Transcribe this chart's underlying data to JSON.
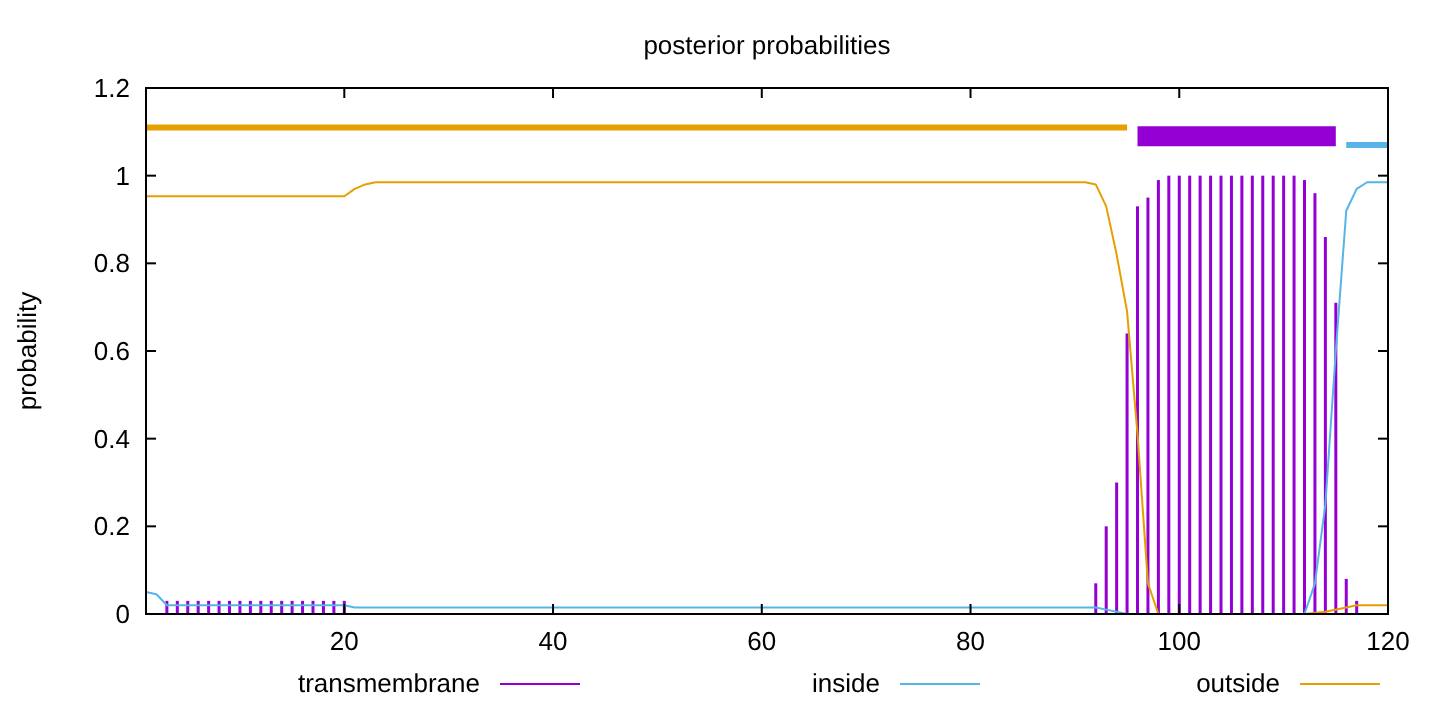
{
  "chart_data": {
    "type": "line",
    "title": "posterior probabilities",
    "ylabel": "probability",
    "xlim": [
      1,
      120
    ],
    "xticks": [
      20,
      40,
      60,
      80,
      100,
      120
    ],
    "ylim": [
      0,
      1.2
    ],
    "yticks": [
      0,
      0.2,
      0.4,
      0.6,
      0.8,
      1,
      1.2
    ],
    "grid": false,
    "legend": "bottom",
    "series": [
      {
        "name": "transmembrane",
        "type": "bar",
        "color": "#9400d3",
        "x": [
          3,
          4,
          5,
          6,
          7,
          8,
          9,
          10,
          11,
          12,
          13,
          14,
          15,
          16,
          17,
          18,
          19,
          20,
          92,
          93,
          94,
          95,
          96,
          97,
          98,
          99,
          100,
          101,
          102,
          103,
          104,
          105,
          106,
          107,
          108,
          109,
          110,
          111,
          112,
          113,
          114,
          115,
          116,
          117
        ],
        "values": [
          0.03,
          0.03,
          0.03,
          0.03,
          0.03,
          0.03,
          0.03,
          0.03,
          0.03,
          0.03,
          0.03,
          0.03,
          0.03,
          0.03,
          0.03,
          0.03,
          0.03,
          0.03,
          0.07,
          0.2,
          0.3,
          0.64,
          0.93,
          0.95,
          0.99,
          1,
          1,
          1,
          1,
          1,
          1,
          1,
          1,
          1,
          1,
          1,
          1,
          1,
          0.99,
          0.96,
          0.86,
          0.71,
          0.08,
          0.03
        ]
      },
      {
        "name": "inside",
        "color": "#56b4e9",
        "x": [
          1,
          2,
          3,
          20,
          21,
          92,
          93,
          94,
          95,
          112,
          113,
          114,
          115,
          116,
          117,
          118,
          120
        ],
        "values": [
          0.05,
          0.045,
          0.02,
          0.02,
          0.015,
          0.015,
          0.01,
          0.005,
          0,
          0,
          0.07,
          0.25,
          0.6,
          0.92,
          0.97,
          0.985,
          0.985
        ]
      },
      {
        "name": "outside",
        "color": "#e69f00",
        "x": [
          1,
          20,
          21,
          22,
          23,
          91,
          92,
          93,
          94,
          95,
          96,
          97,
          98,
          112,
          114,
          116,
          117,
          120
        ],
        "values": [
          0.953,
          0.953,
          0.97,
          0.98,
          0.985,
          0.985,
          0.98,
          0.93,
          0.82,
          0.69,
          0.41,
          0.07,
          0,
          0,
          0.005,
          0.015,
          0.02,
          0.02
        ]
      },
      {
        "color": "#e69f00",
        "x": [
          1,
          95
        ],
        "values": [
          1.11,
          1.11
        ]
      },
      {
        "color": "#9400d3",
        "x": [
          96,
          115
        ],
        "values": [
          1.09,
          1.09
        ]
      },
      {
        "color": "#56b4e9",
        "x": [
          116,
          120
        ],
        "values": [
          1.07,
          1.07
        ]
      }
    ]
  }
}
